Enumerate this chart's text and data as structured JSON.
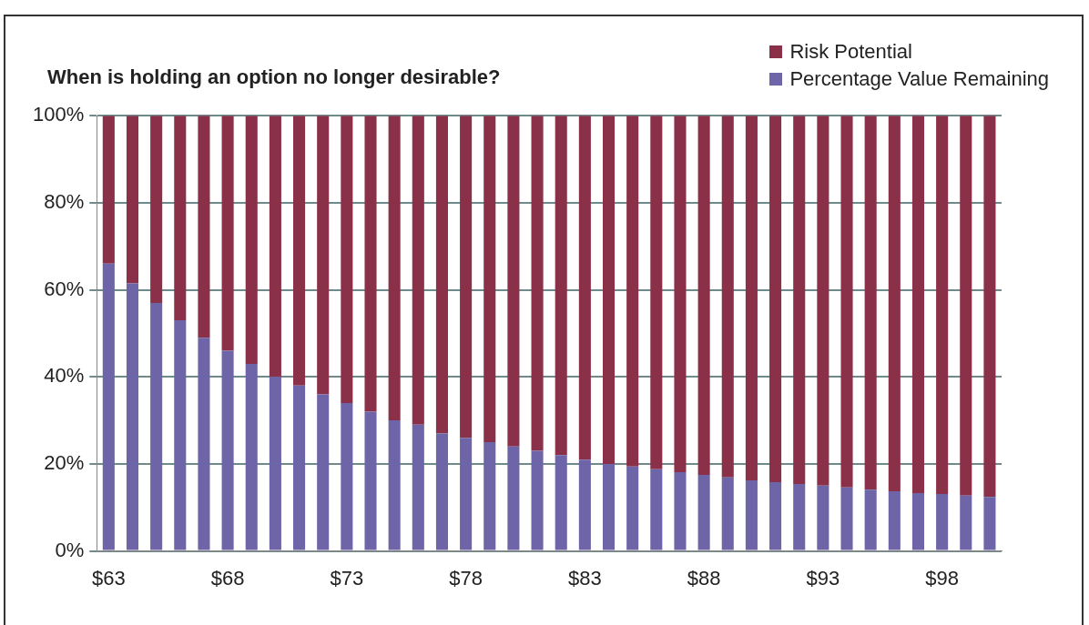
{
  "chart_data": {
    "type": "bar",
    "title": "When is holding an option no longer desirable?",
    "stacked": true,
    "legend": "top right",
    "grid": "y",
    "categories": [
      "$63",
      null,
      null,
      null,
      null,
      "$68",
      null,
      null,
      null,
      null,
      "$73",
      null,
      null,
      null,
      null,
      "$78",
      null,
      null,
      null,
      null,
      "$83",
      null,
      null,
      null,
      null,
      "$88",
      null,
      null,
      null,
      null,
      "$93",
      null,
      null,
      null,
      null,
      "$98",
      null,
      null
    ],
    "ylim": [
      0,
      100
    ],
    "yticks": [
      {
        "value": 0,
        "label": "0%"
      },
      {
        "value": 20,
        "label": "20%"
      },
      {
        "value": 40,
        "label": "40%"
      },
      {
        "value": 60,
        "label": "60%"
      },
      {
        "value": 80,
        "label": "80%"
      },
      {
        "value": 100,
        "label": "100%"
      }
    ],
    "series": [
      {
        "name": "Percentage Value Remaining",
        "color": "#6e64a8",
        "values": [
          66,
          61.5,
          57,
          53,
          49,
          46,
          43,
          40,
          38,
          36,
          34,
          32,
          30,
          29,
          27,
          26,
          25,
          24,
          23,
          22,
          21,
          20,
          19.4,
          18.8,
          18.1,
          17.5,
          16.9,
          16.2,
          15.8,
          15.4,
          15,
          14.6,
          14.1,
          13.7,
          13.3,
          13.1,
          12.7,
          12.4
        ]
      },
      {
        "name": "Risk Potential",
        "color": "#8a3048",
        "values": [
          34,
          38.5,
          43,
          47,
          51,
          54,
          57,
          60,
          62,
          64,
          66,
          68,
          70,
          71,
          73,
          74,
          75,
          76,
          77,
          78,
          79,
          80,
          80.6,
          81.2,
          81.9,
          82.5,
          83.1,
          83.8,
          84.2,
          84.6,
          85,
          85.4,
          85.9,
          86.3,
          86.7,
          86.9,
          87.3,
          87.6
        ]
      }
    ]
  }
}
